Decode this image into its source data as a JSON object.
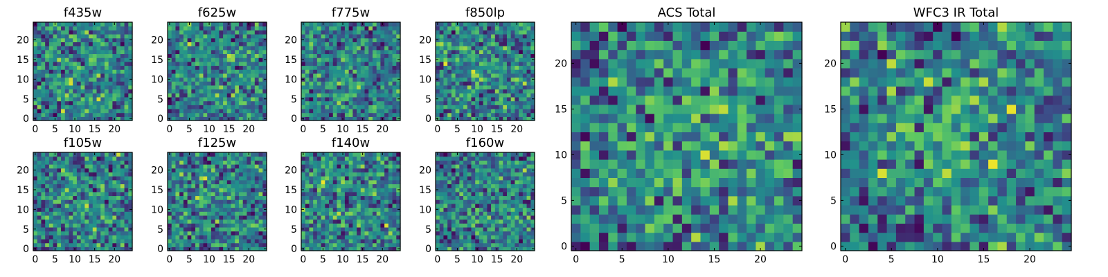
{
  "chart_data": [
    {
      "type": "heatmap",
      "title": "f435w",
      "colormap": "viridis",
      "grid_size": 25,
      "xticks": [
        "0",
        "5",
        "10",
        "15",
        "20"
      ],
      "yticks": [
        "0",
        "5",
        "10",
        "15",
        "20"
      ],
      "xlim": [
        0,
        24
      ],
      "ylim": [
        0,
        24
      ],
      "seed": 11
    },
    {
      "type": "heatmap",
      "title": "f625w",
      "colormap": "viridis",
      "grid_size": 25,
      "xticks": [
        "0",
        "5",
        "10",
        "15",
        "20"
      ],
      "yticks": [
        "0",
        "5",
        "10",
        "15",
        "20"
      ],
      "xlim": [
        0,
        24
      ],
      "ylim": [
        0,
        24
      ],
      "seed": 23
    },
    {
      "type": "heatmap",
      "title": "f775w",
      "colormap": "viridis",
      "grid_size": 25,
      "xticks": [
        "0",
        "5",
        "10",
        "15",
        "20"
      ],
      "yticks": [
        "0",
        "5",
        "10",
        "15",
        "20"
      ],
      "xlim": [
        0,
        24
      ],
      "ylim": [
        0,
        24
      ],
      "seed": 37
    },
    {
      "type": "heatmap",
      "title": "f850lp",
      "colormap": "viridis",
      "grid_size": 25,
      "xticks": [
        "0",
        "5",
        "10",
        "15",
        "20"
      ],
      "yticks": [
        "0",
        "5",
        "10",
        "15",
        "20"
      ],
      "xlim": [
        0,
        24
      ],
      "ylim": [
        0,
        24
      ],
      "seed": 41
    },
    {
      "type": "heatmap",
      "title": "f105w",
      "colormap": "viridis",
      "grid_size": 25,
      "xticks": [
        "0",
        "5",
        "10",
        "15",
        "20"
      ],
      "yticks": [
        "0",
        "5",
        "10",
        "15",
        "20"
      ],
      "xlim": [
        0,
        24
      ],
      "ylim": [
        0,
        24
      ],
      "seed": 53
    },
    {
      "type": "heatmap",
      "title": "f125w",
      "colormap": "viridis",
      "grid_size": 25,
      "xticks": [
        "0",
        "5",
        "10",
        "15",
        "20"
      ],
      "yticks": [
        "0",
        "5",
        "10",
        "15",
        "20"
      ],
      "xlim": [
        0,
        24
      ],
      "ylim": [
        0,
        24
      ],
      "seed": 67
    },
    {
      "type": "heatmap",
      "title": "f140w",
      "colormap": "viridis",
      "grid_size": 25,
      "xticks": [
        "0",
        "5",
        "10",
        "15",
        "20"
      ],
      "yticks": [
        "0",
        "5",
        "10",
        "15",
        "20"
      ],
      "xlim": [
        0,
        24
      ],
      "ylim": [
        0,
        24
      ],
      "seed": 71
    },
    {
      "type": "heatmap",
      "title": "f160w",
      "colormap": "viridis",
      "grid_size": 25,
      "xticks": [
        "0",
        "5",
        "10",
        "15",
        "20"
      ],
      "yticks": [
        "0",
        "5",
        "10",
        "15",
        "20"
      ],
      "xlim": [
        0,
        24
      ],
      "ylim": [
        0,
        24
      ],
      "seed": 83
    },
    {
      "type": "heatmap",
      "title": "ACS Total",
      "colormap": "viridis",
      "grid_size": 25,
      "xticks": [
        "0",
        "5",
        "10",
        "15",
        "20"
      ],
      "yticks": [
        "0",
        "5",
        "10",
        "15",
        "20"
      ],
      "xlim": [
        0,
        24
      ],
      "ylim": [
        0,
        24
      ],
      "seed": 97,
      "dark_pixels": [
        [
          2,
          20
        ],
        [
          2,
          21
        ],
        [
          3,
          10
        ],
        [
          6,
          12
        ],
        [
          10,
          0
        ],
        [
          11,
          0
        ],
        [
          11,
          1
        ],
        [
          14,
          17
        ],
        [
          16,
          6
        ],
        [
          8,
          14
        ],
        [
          3,
          0
        ]
      ]
    },
    {
      "type": "heatmap",
      "title": "WFC3 IR Total",
      "colormap": "viridis",
      "grid_size": 25,
      "xticks": [
        "0",
        "5",
        "10",
        "15",
        "20"
      ],
      "yticks": [
        "0",
        "5",
        "10",
        "15",
        "20"
      ],
      "xlim": [
        0,
        24
      ],
      "ylim": [
        0,
        24
      ],
      "seed": 101,
      "dark_pixels": [
        [
          6,
          1
        ],
        [
          6,
          2
        ],
        [
          7,
          1
        ],
        [
          7,
          2
        ],
        [
          8,
          3
        ],
        [
          9,
          15
        ],
        [
          9,
          16
        ],
        [
          5,
          0
        ],
        [
          8,
          2
        ]
      ]
    }
  ],
  "colors": {
    "viridis": [
      "#440154",
      "#3b528b",
      "#21918c",
      "#5ec962",
      "#fde725"
    ],
    "frame": "#000000",
    "background": "#ffffff"
  }
}
